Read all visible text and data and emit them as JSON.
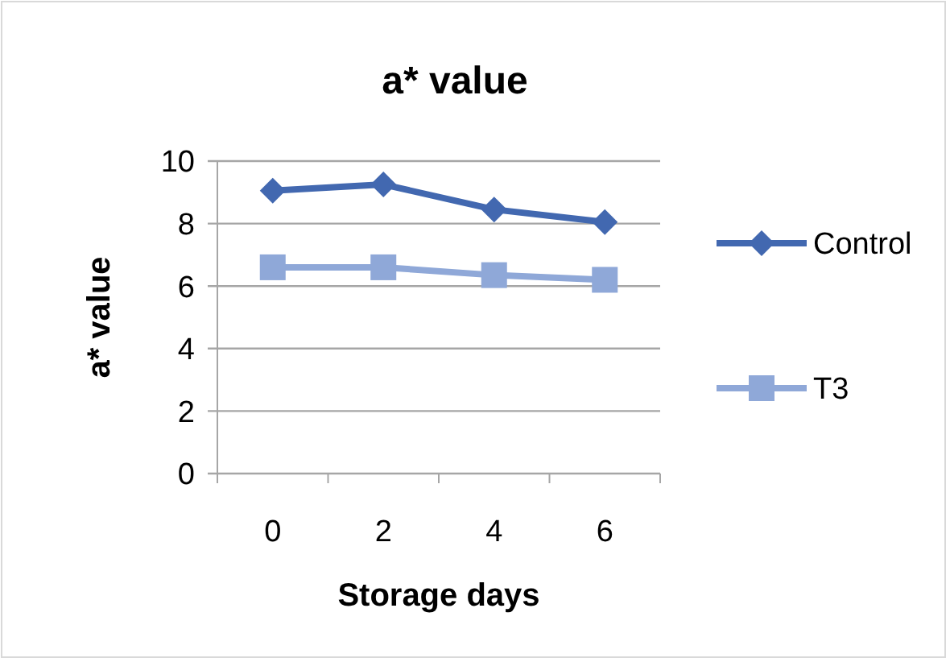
{
  "chart_data": {
    "type": "line",
    "title": "a* value",
    "xlabel": "Storage days",
    "ylabel": "a* value",
    "categories": [
      "0",
      "2",
      "4",
      "6"
    ],
    "series": [
      {
        "name": "Control",
        "color": "#4268b0",
        "values": [
          9.05,
          9.25,
          8.45,
          8.05
        ],
        "marker": "diamond"
      },
      {
        "name": "T3",
        "color": "#8fa8d8",
        "values": [
          6.6,
          6.6,
          6.35,
          6.2
        ],
        "marker": "square"
      }
    ],
    "ylim": [
      0,
      10
    ],
    "yticks": [
      0,
      2,
      4,
      6,
      8,
      10
    ],
    "grid": "y",
    "legend": "right"
  }
}
